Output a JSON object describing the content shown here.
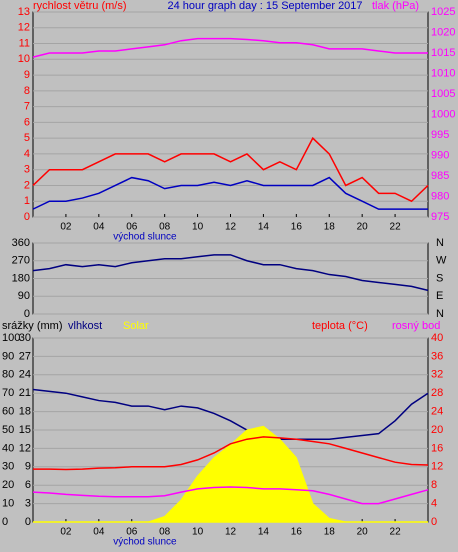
{
  "chart_data": [
    {
      "type": "line",
      "title": "24 hour graph day : 15 September 2017",
      "title_color": "#0000c0",
      "ylabel": "rychlost větru (m/s)",
      "ylabel_color": "#ff0000",
      "y2label": "tlak (hPa)",
      "y2label_color": "#ff00ff",
      "x": [
        0,
        1,
        2,
        3,
        4,
        5,
        6,
        7,
        8,
        9,
        10,
        11,
        12,
        13,
        14,
        15,
        16,
        17,
        18,
        19,
        20,
        21,
        22,
        23,
        24
      ],
      "xlim": [
        0,
        24
      ],
      "xticks": [
        {
          "value": 2,
          "label": "02"
        },
        {
          "value": 4,
          "label": "04"
        },
        {
          "value": 6,
          "label": "06"
        },
        {
          "value": 8,
          "label": "08"
        },
        {
          "value": 10,
          "label": "10"
        },
        {
          "value": 12,
          "label": "12"
        },
        {
          "value": 14,
          "label": "14"
        },
        {
          "value": 16,
          "label": "16"
        },
        {
          "value": 18,
          "label": "18"
        },
        {
          "value": 20,
          "label": "20"
        },
        {
          "value": 22,
          "label": "22"
        }
      ],
      "annotation": {
        "text": "východ slunce",
        "x": 6.8,
        "color": "#0000c0"
      },
      "ylim": [
        0,
        13
      ],
      "yticks": [
        0,
        1,
        2,
        3,
        4,
        5,
        6,
        7,
        8,
        9,
        10,
        11,
        12,
        13
      ],
      "ytick_color": "#ff0000",
      "y2lim": [
        975,
        1025
      ],
      "y2ticks": [
        975,
        980,
        985,
        990,
        995,
        1000,
        1005,
        1010,
        1015,
        1020,
        1025
      ],
      "y2tick_color": "#ff00ff",
      "grid": true,
      "series": [
        {
          "color": "#ff0000",
          "values": [
            2,
            3,
            3,
            3,
            3.5,
            4,
            4,
            4,
            3.5,
            4,
            4,
            4,
            3.5,
            4,
            3,
            3.5,
            3,
            5,
            4,
            2,
            2.5,
            1.5,
            1.5,
            1,
            2
          ]
        },
        {
          "color": "#0000c0",
          "values": [
            0.5,
            1,
            1,
            1.2,
            1.5,
            2,
            2.5,
            2.3,
            1.8,
            2,
            2,
            2.2,
            2,
            2.3,
            2,
            2,
            2,
            2,
            2.5,
            1.5,
            1,
            0.5,
            0.5,
            0.5,
            0.5
          ]
        },
        {
          "color": "#ff00ff",
          "axis": "y2",
          "values": [
            1014,
            1015,
            1015,
            1015,
            1015.5,
            1015.5,
            1016,
            1016.5,
            1017,
            1018,
            1018.5,
            1018.5,
            1018.5,
            1018.3,
            1018,
            1017.5,
            1017.5,
            1017,
            1016,
            1016,
            1016,
            1015.5,
            1015,
            1015,
            1015
          ]
        }
      ]
    },
    {
      "type": "line",
      "x": [
        0,
        1,
        2,
        3,
        4,
        5,
        6,
        7,
        8,
        9,
        10,
        11,
        12,
        13,
        14,
        15,
        16,
        17,
        18,
        19,
        20,
        21,
        22,
        23,
        24
      ],
      "xlim": [
        0,
        24
      ],
      "ylim": [
        0,
        360
      ],
      "yticks": [
        0,
        90,
        180,
        270,
        360
      ],
      "ytick_color": "#000000",
      "y2lim": [
        0,
        360
      ],
      "y2ticks": [
        {
          "value": 0,
          "label": "N"
        },
        {
          "value": 90,
          "label": "E"
        },
        {
          "value": 180,
          "label": "S"
        },
        {
          "value": 270,
          "label": "W"
        },
        {
          "value": 360,
          "label": "N"
        }
      ],
      "y2tick_color": "#000000",
      "grid": true,
      "series": [
        {
          "color": "#000080",
          "values": [
            220,
            230,
            250,
            240,
            250,
            240,
            260,
            270,
            280,
            280,
            290,
            300,
            300,
            270,
            250,
            250,
            230,
            220,
            200,
            190,
            170,
            160,
            150,
            140,
            120
          ]
        }
      ]
    },
    {
      "type": "line",
      "x": [
        0,
        1,
        2,
        3,
        4,
        5,
        6,
        7,
        8,
        9,
        10,
        11,
        12,
        13,
        14,
        15,
        16,
        17,
        18,
        19,
        20,
        21,
        22,
        23,
        24
      ],
      "xlim": [
        0,
        24
      ],
      "xticks": [
        {
          "value": 2,
          "label": "02"
        },
        {
          "value": 4,
          "label": "04"
        },
        {
          "value": 6,
          "label": "06"
        },
        {
          "value": 8,
          "label": "08"
        },
        {
          "value": 10,
          "label": "10"
        },
        {
          "value": 12,
          "label": "12"
        },
        {
          "value": 14,
          "label": "14"
        },
        {
          "value": 16,
          "label": "16"
        },
        {
          "value": 18,
          "label": "18"
        },
        {
          "value": 20,
          "label": "20"
        },
        {
          "value": 22,
          "label": "22"
        }
      ],
      "annotation": {
        "text": "východ slunce",
        "x": 6.8,
        "color": "#0000c0"
      },
      "ylim": [
        0,
        100
      ],
      "yticks": [
        0,
        10,
        20,
        30,
        40,
        50,
        60,
        70,
        80,
        90,
        100
      ],
      "ytick_color": "#000000",
      "precip_lim": [
        0,
        30
      ],
      "precip_ticks": [
        0,
        3,
        6,
        9,
        12,
        15,
        18,
        21,
        24,
        27,
        30
      ],
      "precip_tick_color": "#000000",
      "y2lim": [
        0,
        40
      ],
      "y2ticks": [
        0,
        4,
        8,
        12,
        16,
        20,
        24,
        28,
        32,
        36,
        40
      ],
      "y2tick_color": "#ff0000",
      "grid": true,
      "series": [
        {
          "name": "srážky (mm)",
          "color": "#ffff00",
          "axis": "precip",
          "values": [
            0,
            0,
            0,
            0,
            0,
            0,
            0,
            0,
            0,
            0,
            0,
            0,
            0,
            0,
            0,
            0,
            0,
            0,
            0,
            0,
            0,
            0,
            0,
            0,
            0
          ]
        },
        {
          "name": "vlhkost",
          "color": "#000080",
          "values": [
            72,
            71,
            70,
            68,
            66,
            65,
            63,
            63,
            61,
            63,
            62,
            59,
            55,
            50,
            47,
            45,
            45,
            45,
            45,
            46,
            47,
            48,
            55,
            64,
            70
          ]
        },
        {
          "name": "Solar",
          "color": "#ffff00",
          "kind": "area",
          "values": [
            0,
            0,
            0,
            0,
            0,
            0,
            0,
            0,
            3,
            12,
            25,
            35,
            42,
            50,
            52,
            45,
            35,
            10,
            2,
            0,
            0,
            0,
            0,
            0,
            0
          ]
        },
        {
          "name": "teplota (°C)",
          "color": "#ff0000",
          "axis": "y2",
          "values": [
            11.5,
            11.5,
            11.4,
            11.5,
            11.7,
            11.8,
            12,
            12,
            12,
            12.5,
            13.5,
            15,
            17,
            18,
            18.5,
            18.3,
            18,
            17.5,
            17,
            16,
            15,
            14,
            13,
            12.5,
            12.4
          ]
        },
        {
          "name": "rosný bod",
          "color": "#ff00ff",
          "axis": "y2",
          "values": [
            6.5,
            6.3,
            6,
            5.8,
            5.6,
            5.5,
            5.5,
            5.5,
            5.7,
            6.5,
            7.2,
            7.5,
            7.6,
            7.5,
            7.2,
            7.2,
            7,
            6.8,
            6,
            5,
            4,
            4,
            5,
            6,
            7
          ]
        }
      ]
    }
  ]
}
